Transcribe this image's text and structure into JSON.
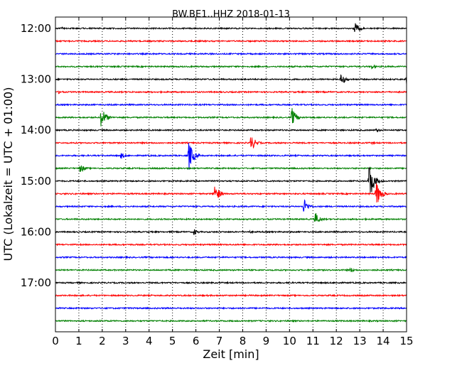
{
  "chart_data": {
    "type": "line",
    "title": "BW.BE1..HHZ 2018-01-13",
    "xlabel": "Zeit  [min]",
    "ylabel": "UTC (Lokalzeit = UTC + 01:00)",
    "xlim": [
      0,
      15
    ],
    "x_ticks": [
      "0",
      "1",
      "2",
      "3",
      "4",
      "5",
      "6",
      "7",
      "8",
      "9",
      "10",
      "11",
      "12",
      "13",
      "14",
      "15"
    ],
    "y_tick_labels": [
      "12:00",
      "13:00",
      "14:00",
      "15:00",
      "16:00",
      "17:00"
    ],
    "grid": "vertical dotted",
    "trace_colors": [
      "#000000",
      "#ff0000",
      "#0000ff",
      "#008000"
    ],
    "traces": [
      {
        "start": "12:00",
        "color": "#000000",
        "events": [
          {
            "t": 0.2,
            "a": 3
          },
          {
            "t": 12.8,
            "a": 10
          }
        ]
      },
      {
        "start": "12:15",
        "color": "#ff0000",
        "events": []
      },
      {
        "start": "12:30",
        "color": "#0000ff",
        "events": []
      },
      {
        "start": "12:45",
        "color": "#008000",
        "events": [
          {
            "t": 13.5,
            "a": 4
          }
        ]
      },
      {
        "start": "13:00",
        "color": "#000000",
        "events": [
          {
            "t": 12.2,
            "a": 9
          },
          {
            "t": 15.0,
            "a": 8
          }
        ]
      },
      {
        "start": "13:15",
        "color": "#ff0000",
        "events": [
          {
            "t": 0.15,
            "a": 3
          }
        ]
      },
      {
        "start": "13:30",
        "color": "#0000ff",
        "events": []
      },
      {
        "start": "13:45",
        "color": "#008000",
        "events": [
          {
            "t": 1.95,
            "a": 16
          },
          {
            "t": 10.1,
            "a": 14
          }
        ]
      },
      {
        "start": "14:00",
        "color": "#000000",
        "events": [
          {
            "t": 13.7,
            "a": 3
          }
        ]
      },
      {
        "start": "14:15",
        "color": "#ff0000",
        "events": [
          {
            "t": 8.35,
            "a": 12
          },
          {
            "t": 13.5,
            "a": 2
          }
        ]
      },
      {
        "start": "14:30",
        "color": "#0000ff",
        "events": [
          {
            "t": 2.8,
            "a": 5
          },
          {
            "t": 5.7,
            "a": 22
          }
        ]
      },
      {
        "start": "14:45",
        "color": "#008000",
        "events": [
          {
            "t": 1.05,
            "a": 7
          }
        ]
      },
      {
        "start": "15:00",
        "color": "#000000",
        "events": [
          {
            "t": 13.4,
            "a": 30
          }
        ]
      },
      {
        "start": "15:15",
        "color": "#ff0000",
        "events": [
          {
            "t": 6.8,
            "a": 15
          },
          {
            "t": 13.7,
            "a": 20
          }
        ]
      },
      {
        "start": "15:30",
        "color": "#0000ff",
        "events": [
          {
            "t": 10.6,
            "a": 12
          }
        ]
      },
      {
        "start": "15:45",
        "color": "#008000",
        "events": [
          {
            "t": 11.1,
            "a": 10
          }
        ]
      },
      {
        "start": "16:00",
        "color": "#000000",
        "events": [
          {
            "t": 5.9,
            "a": 5
          },
          {
            "t": 8.3,
            "a": 2
          }
        ]
      },
      {
        "start": "16:15",
        "color": "#ff0000",
        "events": []
      },
      {
        "start": "16:30",
        "color": "#0000ff",
        "events": []
      },
      {
        "start": "16:45",
        "color": "#008000",
        "events": [
          {
            "t": 12.6,
            "a": 4
          }
        ]
      },
      {
        "start": "17:00",
        "color": "#000000",
        "events": [
          {
            "t": 12.1,
            "a": 2
          }
        ]
      },
      {
        "start": "17:15",
        "color": "#ff0000",
        "events": []
      },
      {
        "start": "17:30",
        "color": "#0000ff",
        "events": []
      },
      {
        "start": "17:45",
        "color": "#008000",
        "events": []
      }
    ]
  }
}
